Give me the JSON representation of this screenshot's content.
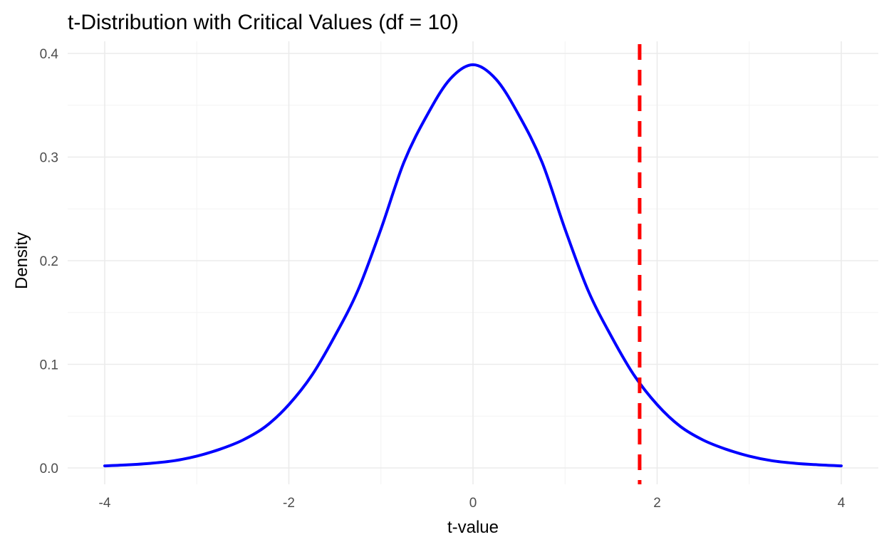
{
  "chart_data": {
    "type": "line",
    "title": "t-Distribution with Critical Values (df = 10)",
    "xlabel": "t-value",
    "ylabel": "Density",
    "xlim": [
      -4,
      4
    ],
    "ylim": [
      0,
      0.4
    ],
    "x_ticks": [
      -4,
      -2,
      0,
      2,
      4
    ],
    "x_tick_labels": [
      "-4",
      "-2",
      "0",
      "2",
      "4"
    ],
    "y_ticks": [
      0.0,
      0.1,
      0.2,
      0.3,
      0.4
    ],
    "y_tick_labels": [
      "0.0",
      "0.1",
      "0.2",
      "0.3",
      "0.4"
    ],
    "grid": true,
    "legend": "none",
    "series": [
      {
        "color": "#0000ff",
        "x": [
          -4.0,
          -3.75,
          -3.5,
          -3.25,
          -3.0,
          -2.75,
          -2.5,
          -2.25,
          -2.0,
          -1.75,
          -1.5,
          -1.25,
          -1.0,
          -0.75,
          -0.5,
          -0.25,
          0.0,
          0.25,
          0.5,
          0.75,
          1.0,
          1.25,
          1.5,
          1.75,
          2.0,
          2.25,
          2.5,
          2.75,
          3.0,
          3.25,
          3.5,
          3.75,
          4.0
        ],
        "y": [
          0.002,
          0.003,
          0.0045,
          0.0069,
          0.0114,
          0.018,
          0.0269,
          0.0402,
          0.0611,
          0.0894,
          0.1274,
          0.1713,
          0.2304,
          0.295,
          0.3402,
          0.3751,
          0.3891,
          0.3751,
          0.3402,
          0.295,
          0.2304,
          0.1713,
          0.1274,
          0.0894,
          0.0611,
          0.0402,
          0.0269,
          0.018,
          0.0114,
          0.0069,
          0.0045,
          0.003,
          0.002
        ]
      }
    ],
    "critical_lines": [
      {
        "x": 1.81,
        "color": "#ff0000",
        "style": "dashed"
      }
    ]
  }
}
